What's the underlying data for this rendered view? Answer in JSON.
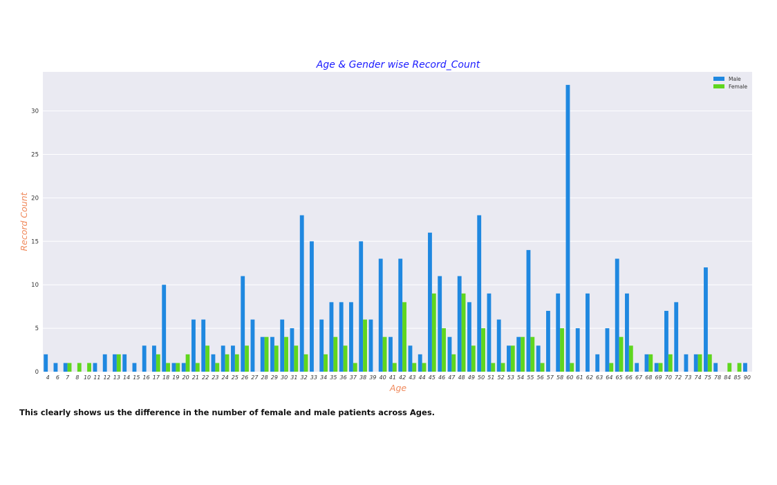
{
  "chart_data": {
    "type": "bar",
    "title": "Age & Gender wise Record_Count",
    "xlabel": "Age",
    "ylabel": "Record Count",
    "ylim": [
      0,
      34.5
    ],
    "yticks": [
      0,
      5,
      10,
      15,
      20,
      25,
      30
    ],
    "grid": true,
    "legend_position": "top-right",
    "categories": [
      "4",
      "6",
      "7",
      "8",
      "10",
      "11",
      "12",
      "13",
      "14",
      "15",
      "16",
      "17",
      "18",
      "19",
      "20",
      "21",
      "22",
      "23",
      "24",
      "25",
      "26",
      "27",
      "28",
      "29",
      "30",
      "31",
      "32",
      "33",
      "34",
      "35",
      "36",
      "37",
      "38",
      "39",
      "40",
      "41",
      "42",
      "43",
      "44",
      "45",
      "46",
      "47",
      "48",
      "49",
      "50",
      "51",
      "52",
      "53",
      "54",
      "55",
      "56",
      "57",
      "58",
      "60",
      "61",
      "62",
      "63",
      "64",
      "65",
      "66",
      "67",
      "68",
      "69",
      "70",
      "72",
      "73",
      "74",
      "75",
      "78",
      "84",
      "85",
      "90"
    ],
    "series": [
      {
        "name": "Male",
        "color": "#1f88e0",
        "values": [
          2,
          1,
          1,
          0,
          0,
          1,
          2,
          2,
          2,
          1,
          3,
          3,
          10,
          1,
          1,
          6,
          6,
          2,
          3,
          3,
          11,
          6,
          4,
          4,
          6,
          5,
          18,
          15,
          6,
          8,
          8,
          8,
          15,
          6,
          13,
          4,
          13,
          3,
          2,
          16,
          11,
          4,
          11,
          8,
          18,
          9,
          6,
          3,
          4,
          14,
          3,
          7,
          9,
          33,
          5,
          9,
          2,
          5,
          13,
          9,
          1,
          2,
          1,
          7,
          8,
          2,
          2,
          12,
          1,
          0,
          0,
          1
        ]
      },
      {
        "name": "Female",
        "color": "#5fd61f",
        "values": [
          0,
          0,
          1,
          1,
          1,
          0,
          0,
          2,
          0,
          0,
          0,
          2,
          1,
          1,
          2,
          1,
          3,
          1,
          2,
          2,
          3,
          0,
          4,
          3,
          4,
          3,
          2,
          0,
          2,
          4,
          3,
          1,
          6,
          0,
          4,
          1,
          8,
          1,
          1,
          9,
          5,
          2,
          9,
          3,
          5,
          1,
          1,
          3,
          4,
          4,
          1,
          0,
          5,
          1,
          0,
          0,
          0,
          1,
          4,
          3,
          0,
          2,
          1,
          2,
          0,
          0,
          2,
          2,
          0,
          1,
          1,
          0
        ]
      }
    ]
  },
  "caption": "This clearly shows us the difference in the number of female and male patients across Ages.",
  "colors": {
    "plot_background": "#eaeaf2",
    "title": "#1a1aff",
    "axis_label": "#f08a5d"
  }
}
